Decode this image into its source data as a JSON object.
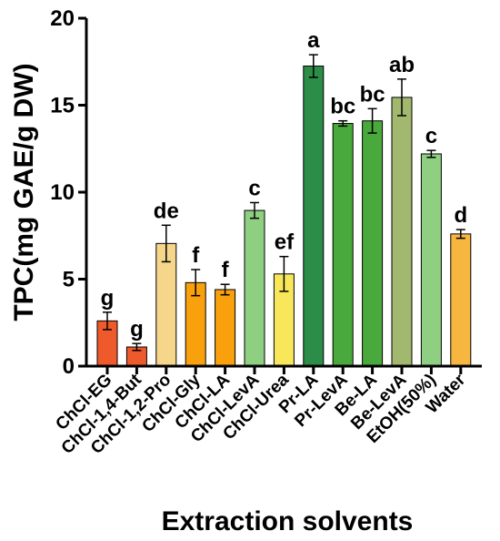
{
  "chart_data": {
    "type": "bar",
    "xlabel": "Extraction solvents",
    "ylabel": "TPC(mg GAE/g DW)",
    "ylim": [
      0,
      20
    ],
    "yticks": [
      0,
      5,
      10,
      15,
      20
    ],
    "grid": false,
    "categories": [
      "ChCl-EG",
      "ChCl-1,4-But",
      "ChCl-1,2-Pro",
      "ChCl-Gly",
      "ChCl-LA",
      "ChCl-LevA",
      "ChCl-Urea",
      "Pr-LA",
      "Pr-LevA",
      "Be-LA",
      "Be-LevA",
      "EtOH(50%)",
      "Water"
    ],
    "values": [
      2.6,
      1.1,
      7.05,
      4.8,
      4.4,
      8.95,
      5.3,
      17.25,
      13.95,
      14.1,
      15.45,
      12.2,
      7.6
    ],
    "errors": [
      0.5,
      0.2,
      1.05,
      0.75,
      0.3,
      0.45,
      1.0,
      0.65,
      0.15,
      0.7,
      1.05,
      0.2,
      0.25
    ],
    "significance": [
      "g",
      "g",
      "de",
      "f",
      "f",
      "c",
      "ef",
      "a",
      "bc",
      "bc",
      "ab",
      "c",
      "d"
    ],
    "colors": [
      "#ee5a2c",
      "#ee5a2c",
      "#f6d68a",
      "#f9a10d",
      "#f9a10d",
      "#8ecf81",
      "#f8e65b",
      "#2b8d47",
      "#4aa93c",
      "#4aa93c",
      "#a3b86f",
      "#8ecf81",
      "#f7b640"
    ]
  }
}
